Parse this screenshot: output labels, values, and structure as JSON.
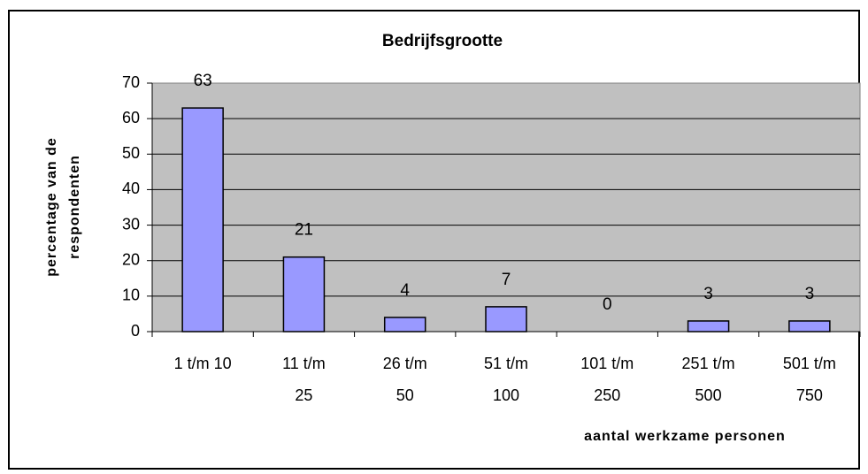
{
  "chart_data": {
    "type": "bar",
    "title": "Bedrijfsgrootte",
    "categories": [
      "1 t/m 10",
      "11 t/m 25",
      "26 t/m 50",
      "51 t/m 100",
      "101 t/m 250",
      "251 t/m 500",
      "501 t/m 750"
    ],
    "values": [
      63,
      21,
      4,
      7,
      0,
      3,
      3
    ],
    "color": "#9999ff",
    "xlabel": "aantal werkzame personen",
    "ylabel": "percentage van de respondenten",
    "ylim": [
      0,
      70
    ],
    "yticks": [
      0,
      10,
      20,
      30,
      40,
      50,
      60,
      70
    ],
    "grid": true
  }
}
